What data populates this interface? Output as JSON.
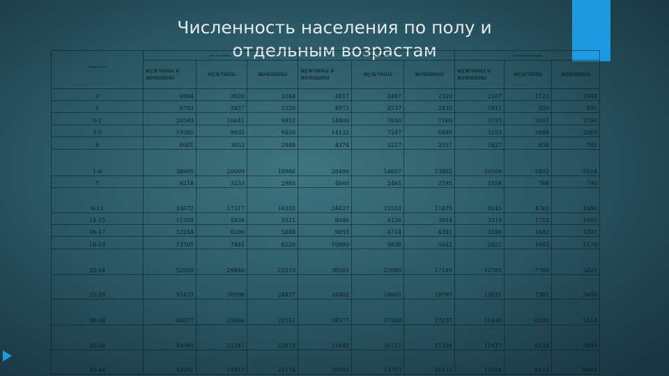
{
  "title": {
    "line1": "Численность населения по полу и",
    "line2": "отдельным возрастам"
  },
  "table": {
    "age_header": "Возраст (лет)",
    "groups": [
      "Все население",
      "Городское население",
      "Сельское население"
    ],
    "subheaders": {
      "total": "мужчины и женщины",
      "men": "мужчины",
      "women": "женщины"
    },
    "rows": [
      {
        "age": "0",
        "cells": [
          "6984",
          "3620",
          "3364",
          "4817",
          "2497",
          "2320",
          "2167",
          "1123",
          "1044"
        ]
      },
      {
        "age": "1",
        "cells": [
          "6783",
          "3457",
          "3326",
          "4972",
          "2537",
          "2435",
          "1811",
          "920",
          "891"
        ]
      },
      {
        "age": "0-2",
        "cells": [
          "20593",
          "10641",
          "9952",
          "14800",
          "7640",
          "7160",
          "5793",
          "3001",
          "2792"
        ]
      },
      {
        "age": "3-5",
        "cells": [
          "19385",
          "9935",
          "9450",
          "14132",
          "7247",
          "6885",
          "5253",
          "2688",
          "2565"
        ]
      },
      {
        "age": "6",
        "cells": [
          "6001",
          "3053",
          "2948",
          "4374",
          "2217",
          "2157",
          "1627",
          "836",
          "791"
        ]
      },
      {
        "age": "1-6",
        "cells": [
          "38995",
          "20009",
          "18986",
          "28489",
          "14607",
          "13882",
          "10506",
          "5402",
          "5104"
        ]
      },
      {
        "age": "7",
        "cells": [
          "6218",
          "3233",
          "2985",
          "4660",
          "2465",
          "2195",
          "1558",
          "768",
          "790"
        ]
      },
      {
        "age": "8-13",
        "cells": [
          "33672",
          "17317",
          "16355",
          "24427",
          "12552",
          "11875",
          "9245",
          "4765",
          "4480"
        ]
      },
      {
        "age": "14-15",
        "cells": [
          "11359",
          "5838",
          "5521",
          "8040",
          "4126",
          "3914",
          "3319",
          "1712",
          "1607"
        ]
      },
      {
        "age": "16-17",
        "cells": [
          "12244",
          "6396",
          "5848",
          "9055",
          "4714",
          "4341",
          "3189",
          "1682",
          "1507"
        ]
      },
      {
        "age": "18-19",
        "cells": [
          "13701",
          "7481",
          "6220",
          "10880",
          "5838",
          "5042",
          "2821",
          "1643",
          "1178"
        ]
      },
      {
        "age": "20-24",
        "cells": [
          "52050",
          "29840",
          "22210",
          "39265",
          "22080",
          "17185",
          "12785",
          "7760",
          "5025"
        ]
      },
      {
        "age": "25-29",
        "cells": [
          "51433",
          "26996",
          "24437",
          "38402",
          "19605",
          "18797",
          "13031",
          "7391",
          "5640"
        ]
      },
      {
        "age": "30-34",
        "cells": [
          "46017",
          "23666",
          "22351",
          "34577",
          "17340",
          "17237",
          "11440",
          "6326",
          "5114"
        ]
      },
      {
        "age": "35-39",
        "cells": [
          "45060",
          "22241",
          "22819",
          "33443",
          "16117",
          "17326",
          "11617",
          "6124",
          "5493"
        ]
      },
      {
        "age": "40-44",
        "cells": [
          "42091",
          "19917",
          "22174",
          "29903",
          "13793",
          "16110",
          "12188",
          "6124",
          "6064"
        ]
      }
    ]
  },
  "colors": {
    "accent": "#1e9ae0",
    "background": "#2c5a67",
    "title_text": "#e4ebee",
    "table_text": "#0a1a20"
  }
}
